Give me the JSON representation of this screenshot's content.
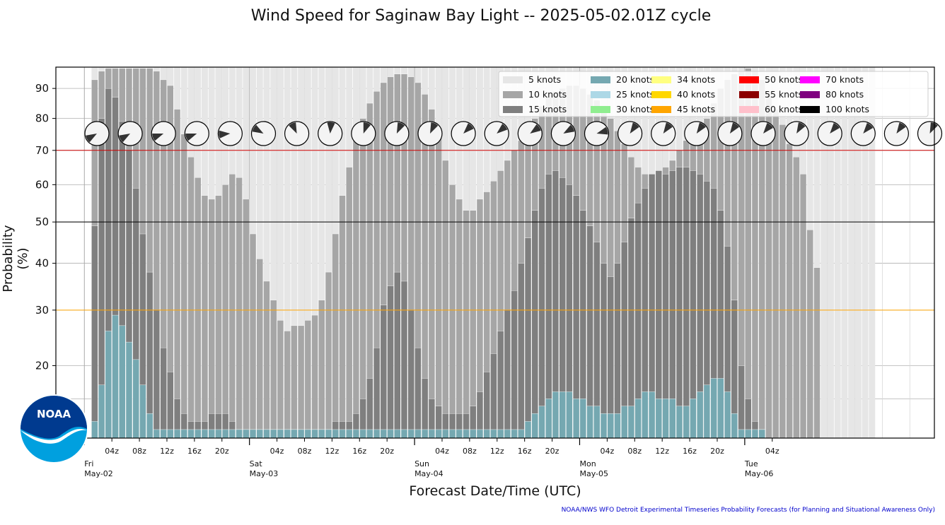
{
  "chart_data": {
    "type": "bar",
    "title": "Wind Speed for Saginaw Bay Light -- 2025-05-02.01Z cycle",
    "xlabel": "Forecast Date/Time (UTC)",
    "ylabel": "Probability (%)",
    "y_ticks": [
      20,
      30,
      40,
      50,
      60,
      70,
      80,
      90
    ],
    "reference_lines": [
      {
        "value": 70,
        "color": "#d00000"
      },
      {
        "value": 50,
        "color": "#000000"
      },
      {
        "value": 30,
        "color": "#ffa500"
      }
    ],
    "x_hour_ticks": [
      "04z",
      "08z",
      "12z",
      "16z",
      "20z",
      "04z",
      "08z",
      "12z",
      "16z",
      "20z",
      "04z",
      "08z",
      "12z",
      "16z",
      "20z",
      "04z",
      "08z",
      "12z",
      "16z",
      "20z",
      "04z"
    ],
    "day_labels": [
      {
        "day": "Fri",
        "date": "May-02"
      },
      {
        "day": "Sat",
        "date": "May-03"
      },
      {
        "day": "Sun",
        "date": "May-04"
      },
      {
        "day": "Mon",
        "date": "May-05"
      },
      {
        "day": "Tue",
        "date": "May-06"
      }
    ],
    "start_hour_utc": 1,
    "bar_interval_hours": 1,
    "series": [
      {
        "name": "5 knots",
        "color": "#e6e6e6",
        "values": [
          100,
          100,
          100,
          100,
          100,
          100,
          100,
          100,
          100,
          100,
          100,
          100,
          100,
          100,
          100,
          100,
          100,
          100,
          100,
          100,
          100,
          100,
          100,
          100,
          98,
          98,
          98,
          98,
          98,
          98,
          99,
          99,
          99,
          99,
          99,
          99,
          99,
          99,
          99,
          99,
          99,
          99,
          99,
          99,
          99,
          99,
          99,
          99,
          99,
          99,
          99,
          99,
          99,
          99,
          99,
          99,
          99,
          99,
          99,
          99,
          99,
          99,
          99,
          99,
          99,
          99,
          99,
          99,
          99,
          99,
          99,
          99,
          99,
          99,
          99,
          99,
          99,
          99,
          99,
          99,
          99,
          99,
          99,
          99,
          99,
          99,
          99,
          99,
          99,
          99,
          99,
          99,
          99,
          99,
          99,
          99,
          99,
          99,
          99,
          99,
          99,
          99,
          99,
          99,
          99,
          99,
          99,
          99,
          99,
          99,
          99,
          99,
          99,
          99
        ]
      },
      {
        "name": "10 knots",
        "color": "#a6a6a6",
        "values": [
          93,
          96,
          97,
          97,
          97,
          97,
          97,
          97,
          97,
          96,
          93,
          91,
          83,
          75,
          68,
          62,
          57,
          56,
          57,
          60,
          63,
          62,
          56,
          47,
          41,
          36,
          32,
          28,
          26,
          27,
          27,
          28,
          29,
          32,
          38,
          47,
          57,
          65,
          73,
          80,
          85,
          89,
          92,
          94,
          95,
          95,
          94,
          92,
          88,
          83,
          77,
          67,
          60,
          56,
          53,
          53,
          56,
          58,
          61,
          64,
          67,
          70,
          73,
          76,
          80,
          84,
          87,
          89,
          90,
          91,
          91,
          90,
          88,
          86,
          83,
          80,
          76,
          72,
          68,
          65,
          63,
          63,
          64,
          65,
          67,
          70,
          73,
          75,
          77,
          80,
          85,
          90,
          93,
          95,
          96,
          97,
          96,
          93,
          89,
          83,
          78,
          72,
          68,
          63,
          48,
          39
        ]
      },
      {
        "name": "15 knots",
        "color": "#7f7f7f",
        "values": [
          49,
          80,
          90,
          87,
          79,
          70,
          59,
          47,
          38,
          30,
          23,
          19,
          15,
          13,
          12,
          12,
          12,
          13,
          13,
          13,
          12,
          11,
          11,
          11,
          11,
          11,
          11,
          11,
          11,
          11,
          11,
          11,
          11,
          11,
          11,
          12,
          12,
          12,
          13,
          15,
          18,
          23,
          31,
          35,
          38,
          36,
          30,
          23,
          18,
          15,
          14,
          13,
          13,
          13,
          13,
          14,
          16,
          19,
          22,
          26,
          30,
          34,
          40,
          46,
          53,
          59,
          63,
          64,
          62,
          60,
          57,
          53,
          49,
          45,
          40,
          37,
          40,
          45,
          51,
          55,
          59,
          63,
          64,
          63,
          64,
          65,
          65,
          64,
          63,
          61,
          59,
          53,
          44,
          32,
          20,
          15,
          12,
          11
        ]
      },
      {
        "name": "20 knots",
        "color": "#75a8b1",
        "values": [
          12,
          17,
          26,
          29,
          27,
          24,
          21,
          17,
          13,
          11,
          11,
          11,
          11,
          11,
          11,
          11,
          11,
          11,
          11,
          11,
          11,
          11,
          11,
          11,
          11,
          11,
          11,
          11,
          11,
          11,
          11,
          11,
          11,
          11,
          11,
          11,
          11,
          11,
          11,
          11,
          11,
          11,
          11,
          11,
          11,
          11,
          11,
          11,
          11,
          11,
          11,
          11,
          11,
          11,
          11,
          11,
          11,
          11,
          11,
          11,
          11,
          11,
          11,
          12,
          13,
          14,
          15,
          16,
          16,
          16,
          15,
          15,
          14,
          14,
          13,
          13,
          13,
          14,
          14,
          15,
          16,
          16,
          15,
          15,
          15,
          14,
          14,
          15,
          16,
          17,
          18,
          18,
          16,
          13,
          11,
          11,
          11,
          11
        ]
      },
      {
        "name": "25 knots",
        "color": "#add8e6"
      },
      {
        "name": "30 knots",
        "color": "#90ee90"
      },
      {
        "name": "34 knots",
        "color": "#ffff80"
      },
      {
        "name": "40 knots",
        "color": "#ffd700"
      },
      {
        "name": "45 knots",
        "color": "#ffa500"
      },
      {
        "name": "50 knots",
        "color": "#ff0000"
      },
      {
        "name": "55 knots",
        "color": "#8b0000"
      },
      {
        "name": "60 knots",
        "color": "#ffc0cb"
      },
      {
        "name": "70 knots",
        "color": "#ff00ff"
      },
      {
        "name": "80 knots",
        "color": "#800080"
      },
      {
        "name": "100 knots",
        "color": "#000000"
      }
    ],
    "wind_direction_from_deg": [
      240,
      240,
      250,
      250,
      265,
      300,
      335,
      5,
      20,
      25,
      25,
      45,
      50,
      55,
      60,
      75,
      35,
      35,
      35,
      35,
      40,
      30,
      40,
      40,
      35,
      25,
      25,
      30,
      30,
      30
    ],
    "legend_columns": 5,
    "legend_position": "top-right"
  },
  "footer": "NOAA/NWS WFO Detroit Experimental Timeseries Probability Forecasts (for Planning and Situational Awareness Only)",
  "logo_text": "NOAA"
}
